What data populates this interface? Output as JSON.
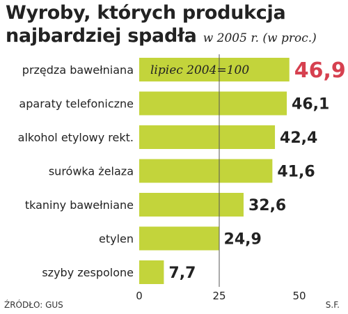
{
  "title": {
    "line1": "Wyroby, których produkcja",
    "line2": "najbardziej spadła",
    "subtitle": "w 2005 r. (w proc.)"
  },
  "chart_data": {
    "type": "bar",
    "orientation": "horizontal",
    "categories": [
      "przędza bawełniana",
      "aparaty telefoniczne",
      "alkohol etylowy rekt.",
      "surówka żelaza",
      "tkaniny bawełniane",
      "etylen",
      "szyby zespolone"
    ],
    "values": [
      46.9,
      46.1,
      42.4,
      41.6,
      32.6,
      24.9,
      7.7
    ],
    "value_labels": [
      "46,9",
      "46,1",
      "42,4",
      "41,6",
      "32,6",
      "24,9",
      "7,7"
    ],
    "annotation": "lipiec 2004=100",
    "xlim": [
      0,
      50
    ],
    "xticks": [
      0,
      25,
      50
    ],
    "xtick_labels": [
      "0",
      "25",
      "50"
    ],
    "reference_line": 25,
    "grid": false,
    "legend": "none",
    "highlight_index": 0
  },
  "colors": {
    "bar": "#c3d43b",
    "highlight_label": "#d6404f",
    "text": "#222222",
    "axis": "#555555"
  },
  "footer": {
    "source": "ŹRÓDŁO: GUS",
    "author": "S.F."
  }
}
